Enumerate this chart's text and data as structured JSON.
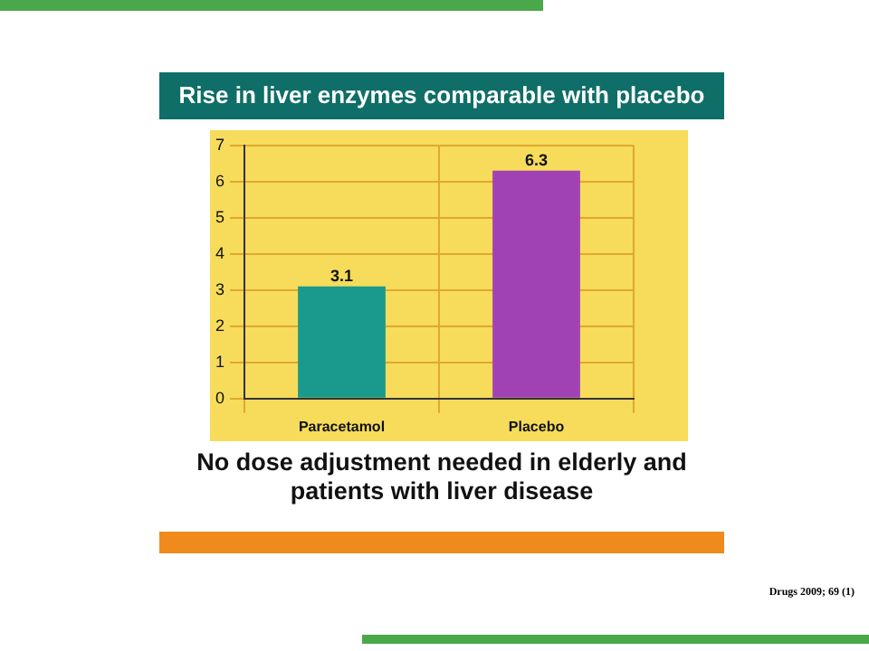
{
  "chart_data": {
    "type": "bar",
    "title": "Rise in liver enzymes comparable with placebo",
    "categories": [
      "Paracetamol",
      "Placebo"
    ],
    "values": [
      3.1,
      6.3
    ],
    "colors": [
      "#1a9a8c",
      "#a142b4"
    ],
    "ylim": [
      0,
      7
    ],
    "yticks": [
      0,
      1,
      2,
      3,
      4,
      5,
      6,
      7
    ],
    "grid": true,
    "data_labels": true,
    "annotations": [
      "No dose adjustment needed in elderly and patients with liver disease",
      "Drugs 2009; 69 (1)"
    ]
  }
}
